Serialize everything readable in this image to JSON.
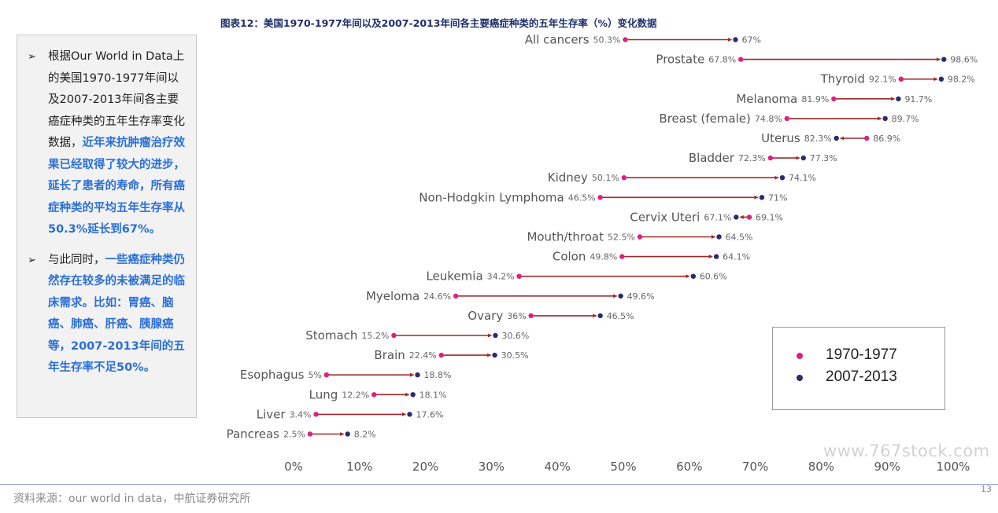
{
  "figure_title": "图表12：美国1970-1977年间以及2007-2013年间各主要癌症种类的五年生存率（%）变化数据",
  "note": {
    "item1": {
      "bullet": "➢",
      "normal": "根据Our World in Data上的美国1970-1977年间以及2007-2013年间各主要癌症种类的五年生存率变化数据，",
      "highlight": "近年来抗肿瘤治疗效果已经取得了较大的进步，延长了患者的寿命，所有癌症种类的平均五年生存率从50.3%延长到67%。"
    },
    "item2": {
      "bullet": "➢",
      "normal": "与此同时，",
      "highlight": "一些癌症种类仍然存在较多的未被满足的临床需求。比如：胃癌、脑癌、肺癌、肝癌、胰腺癌等，2007-2013年间的五年生存率不足50%。"
    }
  },
  "chart_data": {
    "type": "dumbbell",
    "xlim": [
      0,
      100
    ],
    "x_ticks": [
      "0%",
      "10%",
      "20%",
      "30%",
      "40%",
      "50%",
      "60%",
      "70%",
      "80%",
      "90%",
      "100%"
    ],
    "series": [
      {
        "name": "1970-1977",
        "color": "#e0207a"
      },
      {
        "name": "2007-2013",
        "color": "#2a2c6e"
      }
    ],
    "arrow_color": "#9e2a28",
    "rows": [
      {
        "label": "All cancers",
        "from": 50.3,
        "to": 67,
        "from_label": "50.3%",
        "to_label": "67%"
      },
      {
        "label": "Prostate",
        "from": 67.8,
        "to": 98.6,
        "from_label": "67.8%",
        "to_label": "98.6%"
      },
      {
        "label": "Thyroid",
        "from": 92.1,
        "to": 98.2,
        "from_label": "92.1%",
        "to_label": "98.2%"
      },
      {
        "label": "Melanoma",
        "from": 81.9,
        "to": 91.7,
        "from_label": "81.9%",
        "to_label": "91.7%"
      },
      {
        "label": "Breast (female)",
        "from": 74.8,
        "to": 89.7,
        "from_label": "74.8%",
        "to_label": "89.7%"
      },
      {
        "label": "Uterus",
        "from": 86.9,
        "to": 82.3,
        "from_label": "86.9%",
        "to_label": "82.3%"
      },
      {
        "label": "Bladder",
        "from": 72.3,
        "to": 77.3,
        "from_label": "72.3%",
        "to_label": "77.3%"
      },
      {
        "label": "Kidney",
        "from": 50.1,
        "to": 74.1,
        "from_label": "50.1%",
        "to_label": "74.1%"
      },
      {
        "label": "Non-Hodgkin Lymphoma",
        "from": 46.5,
        "to": 71,
        "from_label": "46.5%",
        "to_label": "71%"
      },
      {
        "label": "Cervix Uteri",
        "from": 69.1,
        "to": 67.1,
        "from_label": "69.1%",
        "to_label": "67.1%"
      },
      {
        "label": "Mouth/throat",
        "from": 52.5,
        "to": 64.5,
        "from_label": "52.5%",
        "to_label": "64.5%"
      },
      {
        "label": "Colon",
        "from": 49.8,
        "to": 64.1,
        "from_label": "49.8%",
        "to_label": "64.1%"
      },
      {
        "label": "Leukemia",
        "from": 34.2,
        "to": 60.6,
        "from_label": "34.2%",
        "to_label": "60.6%"
      },
      {
        "label": "Myeloma",
        "from": 24.6,
        "to": 49.6,
        "from_label": "24.6%",
        "to_label": "49.6%"
      },
      {
        "label": "Ovary",
        "from": 36,
        "to": 46.5,
        "from_label": "36%",
        "to_label": "46.5%"
      },
      {
        "label": "Stomach",
        "from": 15.2,
        "to": 30.6,
        "from_label": "15.2%",
        "to_label": "30.6%"
      },
      {
        "label": "Brain",
        "from": 22.4,
        "to": 30.5,
        "from_label": "22.4%",
        "to_label": "30.5%"
      },
      {
        "label": "Esophagus",
        "from": 5,
        "to": 18.8,
        "from_label": "5%",
        "to_label": "18.8%"
      },
      {
        "label": "Lung",
        "from": 12.2,
        "to": 18.1,
        "from_label": "12.2%",
        "to_label": "18.1%"
      },
      {
        "label": "Liver",
        "from": 3.4,
        "to": 17.6,
        "from_label": "3.4%",
        "to_label": "17.6%"
      },
      {
        "label": "Pancreas",
        "from": 2.5,
        "to": 8.2,
        "from_label": "2.5%",
        "to_label": "8.2%"
      }
    ]
  },
  "legend": {
    "item1": {
      "label": "1970-1977",
      "color": "#e0207a"
    },
    "item2": {
      "label": "2007-2013",
      "color": "#2a2c6e"
    }
  },
  "watermark": "www.767stock.com",
  "source": "资料来源：our world in data，中航证券研究所",
  "page_number": "13"
}
